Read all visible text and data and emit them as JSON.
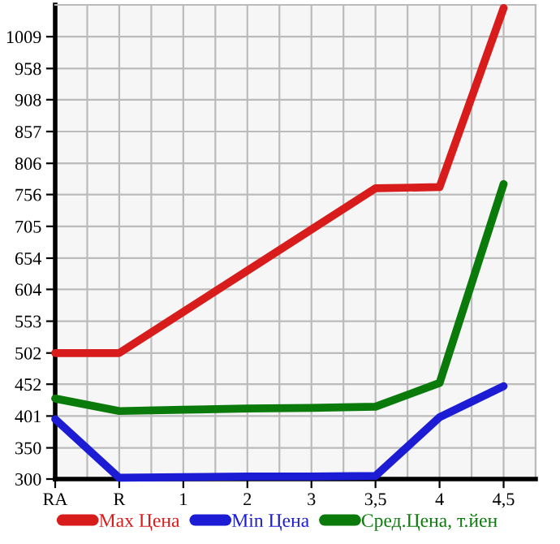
{
  "chart_data": {
    "type": "line",
    "categories": [
      "RA",
      "R",
      "1",
      "2",
      "3",
      "3,5",
      "4",
      "4,5"
    ],
    "series": [
      {
        "name": "Max Цена",
        "color": "#d81c1c",
        "values": [
          502,
          502,
          568,
          634,
          700,
          766,
          768,
          1055
        ]
      },
      {
        "name": "Min Цена",
        "color": "#1c1cd4",
        "values": [
          396,
          302,
          303,
          304,
          304,
          305,
          399,
          449
        ]
      },
      {
        "name": "Сред.Цена, т.йен",
        "color": "#0a7a0a",
        "values": [
          429,
          409,
          411,
          413,
          414,
          416,
          454,
          773
        ]
      }
    ],
    "ylim": [
      300,
      1060
    ],
    "yticks": [
      300,
      350,
      401,
      452,
      502,
      553,
      604,
      654,
      705,
      756,
      806,
      857,
      908,
      958,
      1009
    ],
    "grid": true,
    "legend": "bottom",
    "marker": "none",
    "line_style": "solid"
  }
}
